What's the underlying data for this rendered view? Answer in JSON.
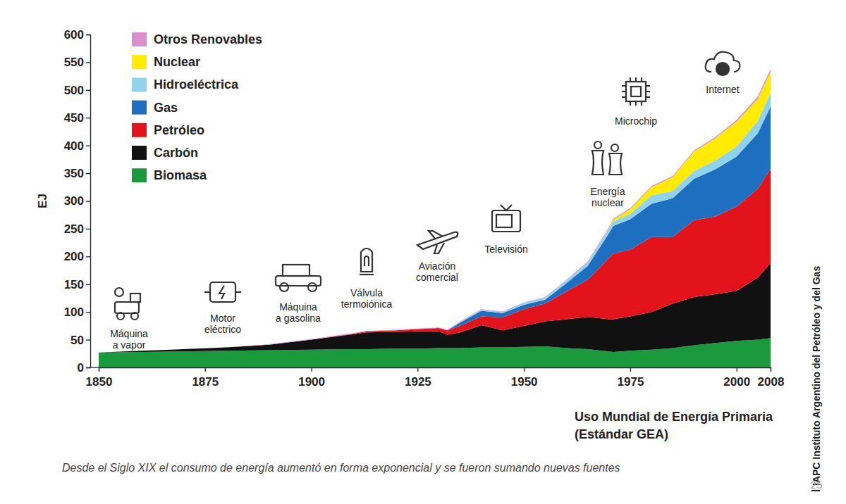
{
  "chart_data": {
    "type": "area",
    "stacked": true,
    "grid": false,
    "legend": "top-left",
    "y_label": "EJ",
    "x_label": [
      "Uso Mundial de Energía Primaria",
      "(Estándar GEA)"
    ],
    "caption": "Desde el Siglo XIX el consumo de energía aumentó en forma exponencial y se fueron sumando nuevas fuentes",
    "source": "IAPC Instituto Argentino del Petróleo y del Gas",
    "page": "25",
    "xlim": [
      1850,
      2008
    ],
    "xticks": [
      1850,
      1875,
      1900,
      1925,
      1950,
      1975,
      2000,
      2008
    ],
    "ylim": [
      0,
      600
    ],
    "yticks": [
      0,
      50,
      100,
      150,
      200,
      250,
      300,
      350,
      400,
      450,
      500,
      550,
      600
    ],
    "x": [
      1850,
      1860,
      1870,
      1880,
      1890,
      1900,
      1910,
      1913,
      1920,
      1925,
      1930,
      1932,
      1935,
      1940,
      1945,
      1950,
      1955,
      1960,
      1965,
      1970,
      1971,
      1975,
      1980,
      1985,
      1990,
      1995,
      2000,
      2005,
      2008
    ],
    "series": [
      {
        "name": "Biomasa",
        "color": "#1a9a3c",
        "values": [
          27,
          28,
          29,
          30,
          31,
          32,
          33,
          33,
          34,
          34,
          35,
          35,
          35,
          36,
          36,
          37,
          38,
          35,
          33,
          29,
          28,
          30,
          32,
          35,
          40,
          44,
          48,
          50,
          53
        ]
      },
      {
        "name": "Carbón",
        "color": "#111111",
        "values": [
          0,
          2,
          4,
          6,
          10,
          18,
          27,
          30,
          30,
          31,
          30,
          24,
          28,
          40,
          31,
          38,
          45,
          52,
          58,
          58,
          59,
          62,
          68,
          80,
          87,
          88,
          90,
          112,
          135
        ]
      },
      {
        "name": "Petróleo",
        "color": "#e3131b",
        "values": [
          0,
          0,
          0,
          0,
          0,
          0,
          1,
          2,
          3,
          4,
          6,
          8,
          12,
          16,
          23,
          30,
          32,
          50,
          67,
          110,
          118,
          120,
          135,
          120,
          138,
          140,
          152,
          160,
          170
        ]
      },
      {
        "name": "Gas",
        "color": "#1f6fc0",
        "values": [
          0,
          0,
          0,
          0,
          0,
          0,
          0,
          0,
          0,
          0,
          0,
          0,
          6,
          10,
          8,
          8,
          7,
          15,
          25,
          45,
          50,
          55,
          60,
          70,
          75,
          85,
          90,
          100,
          112
        ]
      },
      {
        "name": "Hidroeléctrica",
        "color": "#8fd3ef",
        "values": [
          0,
          0,
          0,
          0,
          0,
          0,
          0,
          0,
          0,
          0,
          0,
          0,
          1,
          2,
          2,
          3,
          4,
          5,
          6,
          8,
          8,
          10,
          15,
          13,
          14,
          16,
          18,
          22,
          25
        ]
      },
      {
        "name": "Nuclear",
        "color": "#ffec00",
        "values": [
          0,
          0,
          0,
          0,
          0,
          0,
          0,
          0,
          0,
          0,
          0,
          0,
          0,
          0,
          0,
          0,
          0,
          0,
          0,
          1,
          3,
          8,
          15,
          25,
          35,
          40,
          45,
          40,
          38
        ]
      },
      {
        "name": "Otros Renovables",
        "color": "#d98fcf",
        "values": [
          0,
          0,
          0,
          0,
          1,
          1,
          1,
          1,
          1,
          1,
          1,
          1,
          1,
          1,
          1,
          1,
          1,
          1,
          2,
          2,
          2,
          2,
          2,
          2,
          2,
          2,
          3,
          4,
          5
        ]
      }
    ],
    "annotations": [
      {
        "text": [
          "Máquina",
          "a vapor"
        ]
      },
      {
        "text": [
          "Motor",
          "eléctrico"
        ]
      },
      {
        "text": [
          "Máquina",
          "a gasolina"
        ]
      },
      {
        "text": [
          "Válvula",
          "termoiónica"
        ]
      },
      {
        "text": [
          "Aviación",
          "comercial"
        ]
      },
      {
        "text": [
          "Televisión"
        ]
      },
      {
        "text": [
          "Energía",
          "nuclear"
        ]
      },
      {
        "text": [
          "Microchip"
        ]
      },
      {
        "text": [
          "Internet"
        ]
      }
    ]
  }
}
